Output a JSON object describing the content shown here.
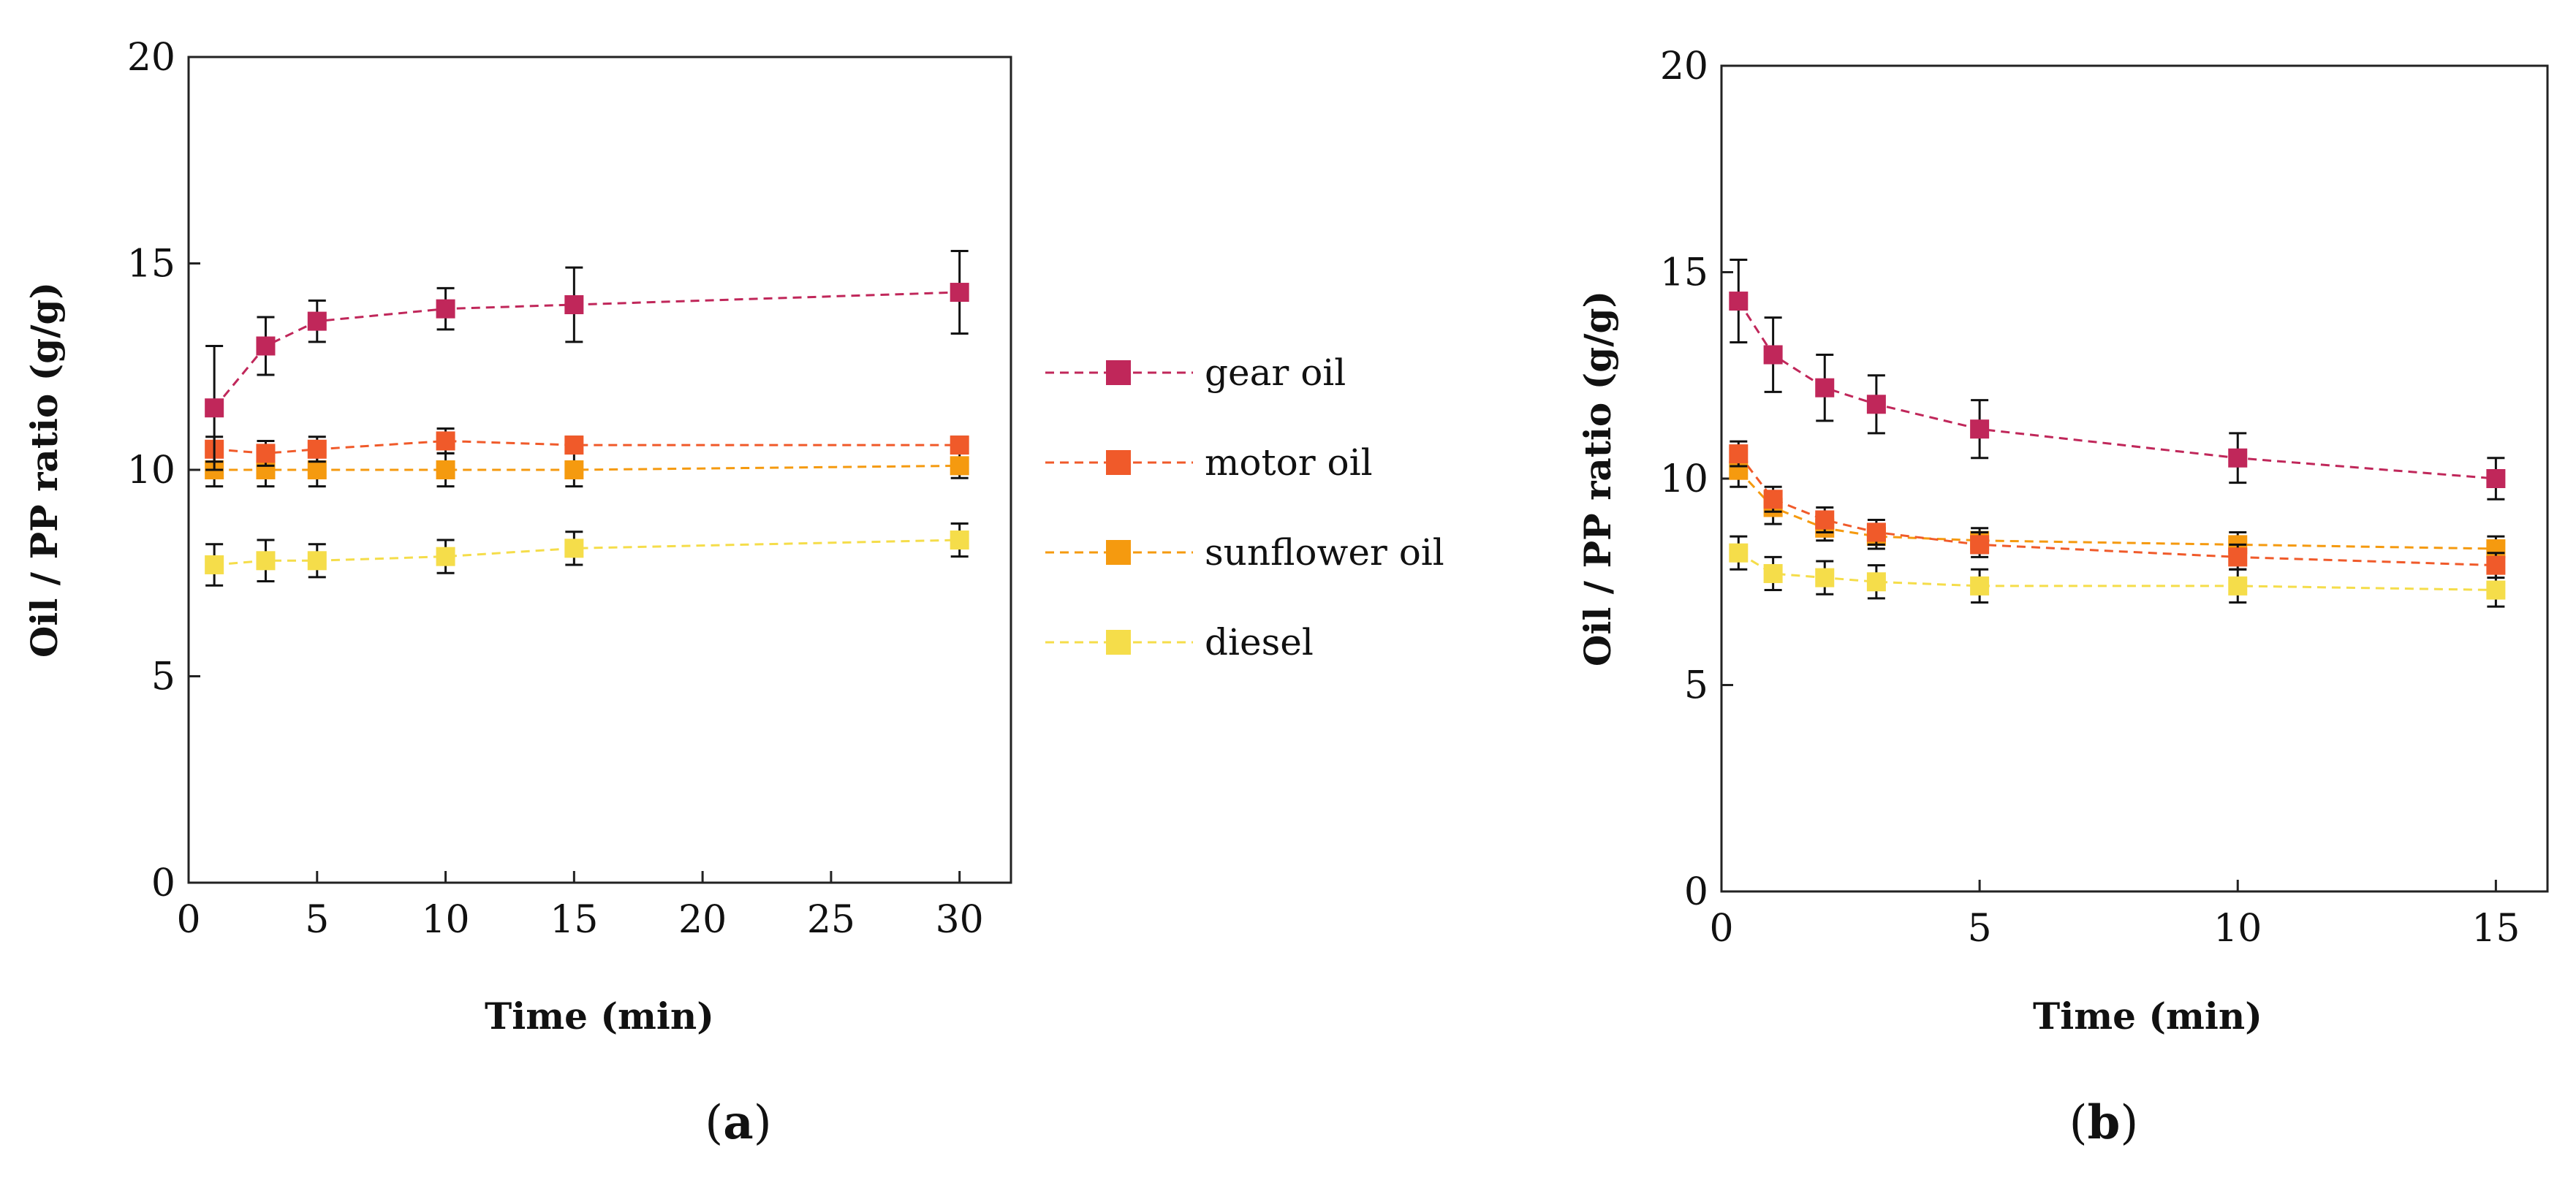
{
  "figure": {
    "legend": [
      "gear oil",
      "motor oil",
      "sunflower oil",
      "diesel"
    ],
    "panel_labels": [
      {
        "open": "(",
        "letter": "a",
        "close": ")"
      },
      {
        "open": "(",
        "letter": "b",
        "close": ")"
      }
    ]
  },
  "chart_data": [
    {
      "type": "line",
      "panel": "a",
      "xlabel": "Time (min)",
      "ylabel": "Oil / PP ratio (g/g)",
      "xlim": [
        0,
        32
      ],
      "ylim": [
        0,
        20
      ],
      "xticks": [
        0,
        5,
        10,
        15,
        20,
        25,
        30
      ],
      "yticks": [
        0,
        5,
        10,
        15,
        20
      ],
      "x": [
        1,
        3,
        5,
        10,
        15,
        30
      ],
      "series": [
        {
          "name": "gear oil",
          "color": "#c0275a",
          "values": [
            11.5,
            13.0,
            13.6,
            13.9,
            14.0,
            14.3
          ],
          "errors": [
            1.5,
            0.7,
            0.5,
            0.5,
            0.9,
            1.0
          ]
        },
        {
          "name": "motor oil",
          "color": "#f05a2a",
          "values": [
            10.5,
            10.4,
            10.5,
            10.7,
            10.6,
            10.6
          ],
          "errors": [
            0.3,
            0.3,
            0.3,
            0.3,
            0.2,
            0.2
          ]
        },
        {
          "name": "sunflower oil",
          "color": "#f59a0f",
          "values": [
            10.0,
            10.0,
            10.0,
            10.0,
            10.0,
            10.1
          ],
          "errors": [
            0.4,
            0.4,
            0.4,
            0.4,
            0.4,
            0.3
          ]
        },
        {
          "name": "diesel",
          "color": "#f5dd4a",
          "values": [
            7.7,
            7.8,
            7.8,
            7.9,
            8.1,
            8.3
          ],
          "errors": [
            0.5,
            0.5,
            0.4,
            0.4,
            0.4,
            0.4
          ]
        }
      ]
    },
    {
      "type": "line",
      "panel": "b",
      "xlabel": "Time (min)",
      "ylabel": "Oil / PP ratio (g/g)",
      "xlim": [
        0,
        16
      ],
      "ylim": [
        0,
        20
      ],
      "xticks": [
        0,
        5,
        10,
        15
      ],
      "yticks": [
        0,
        5,
        10,
        15,
        20
      ],
      "x": [
        0.33,
        1,
        2,
        3,
        5,
        10,
        15
      ],
      "series": [
        {
          "name": "gear oil",
          "color": "#c0275a",
          "values": [
            14.3,
            13.0,
            12.2,
            11.8,
            11.2,
            10.5,
            10.0
          ],
          "errors": [
            1.0,
            0.9,
            0.8,
            0.7,
            0.7,
            0.6,
            0.5
          ]
        },
        {
          "name": "motor oil",
          "color": "#f05a2a",
          "values": [
            10.6,
            9.5,
            9.0,
            8.7,
            8.4,
            8.1,
            7.9
          ],
          "errors": [
            0.3,
            0.3,
            0.3,
            0.3,
            0.3,
            0.3,
            0.3
          ]
        },
        {
          "name": "sunflower oil",
          "color": "#f59a0f",
          "values": [
            10.2,
            9.3,
            8.8,
            8.6,
            8.5,
            8.4,
            8.3
          ],
          "errors": [
            0.4,
            0.4,
            0.3,
            0.3,
            0.3,
            0.3,
            0.3
          ]
        },
        {
          "name": "diesel",
          "color": "#f5dd4a",
          "values": [
            8.2,
            7.7,
            7.6,
            7.5,
            7.4,
            7.4,
            7.3
          ],
          "errors": [
            0.4,
            0.4,
            0.4,
            0.4,
            0.4,
            0.4,
            0.4
          ]
        }
      ]
    }
  ]
}
